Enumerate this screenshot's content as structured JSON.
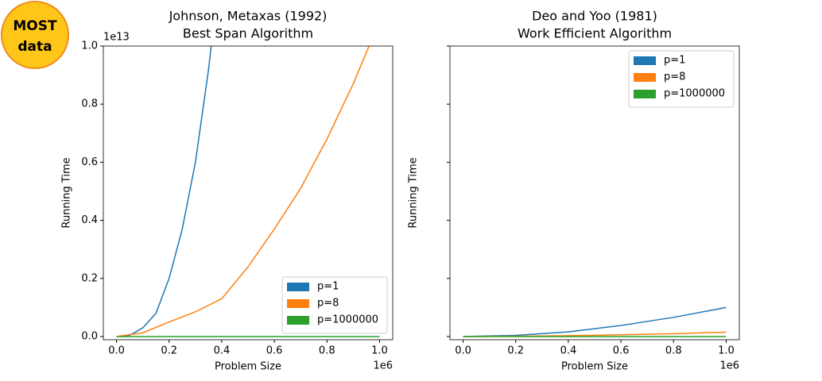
{
  "badge": {
    "line1": "MOST",
    "line2": "data"
  },
  "chart_data": [
    {
      "type": "line",
      "title": "Johnson, Metaxas (1992)",
      "subtitle": "Best Span Algorithm",
      "xlabel": "Problem Size",
      "ylabel": "Running Time",
      "x_offset": "1e6",
      "y_offset": "1e13",
      "xlim": [
        -0.05,
        1.05
      ],
      "ylim": [
        -0.011,
        1.0
      ],
      "xticks": [
        {
          "value": 0,
          "label": "0.0"
        },
        0.2,
        0.4,
        0.6,
        0.8,
        {
          "value": 1,
          "label": "1.0"
        }
      ],
      "yticks": [
        {
          "value": 0,
          "label": "0.0"
        },
        0.2,
        0.4,
        0.6,
        0.8,
        {
          "value": 1,
          "label": "1.0"
        }
      ],
      "ytick_labels": true,
      "legend": "lower right",
      "series": [
        {
          "name": "p=1",
          "color": "#1f77b4",
          "x": [
            0,
            0.05,
            0.1,
            0.15,
            0.2,
            0.25,
            0.3,
            0.35,
            0.36
          ],
          "values": [
            0,
            0.004,
            0.03,
            0.08,
            0.2,
            0.37,
            0.6,
            0.92,
            1.0
          ]
        },
        {
          "name": "p=8",
          "color": "#ff7f0e",
          "x": [
            0,
            0.1,
            0.2,
            0.3,
            0.4,
            0.5,
            0.6,
            0.7,
            0.8,
            0.9,
            0.96
          ],
          "values": [
            0,
            0.013,
            0.05,
            0.085,
            0.13,
            0.24,
            0.37,
            0.51,
            0.68,
            0.87,
            1.0
          ]
        },
        {
          "name": "p=1000000",
          "color": "#2ca02c",
          "x": [
            0,
            1
          ],
          "values": [
            0,
            0
          ]
        }
      ]
    },
    {
      "type": "line",
      "title": "Deo and Yoo (1981)",
      "subtitle": "Work Efficient Algorithm",
      "xlabel": "Problem Size",
      "ylabel": "Running Time",
      "x_offset": "1e6",
      "xlim": [
        -0.05,
        1.05
      ],
      "ylim": [
        -0.011,
        1.0
      ],
      "xticks": [
        {
          "value": 0,
          "label": "0.0"
        },
        0.2,
        0.4,
        0.6,
        0.8,
        {
          "value": 1,
          "label": "1.0"
        }
      ],
      "yticks": [
        0,
        0.2,
        0.4,
        0.6,
        0.8,
        1
      ],
      "ytick_labels": false,
      "legend": "upper right",
      "series": [
        {
          "name": "p=1",
          "color": "#1f77b4",
          "x": [
            0,
            0.2,
            0.4,
            0.6,
            0.8,
            1.0
          ],
          "values": [
            0,
            0.004,
            0.016,
            0.038,
            0.066,
            0.1
          ]
        },
        {
          "name": "p=8",
          "color": "#ff7f0e",
          "x": [
            0,
            0.2,
            0.4,
            0.6,
            0.8,
            1.0
          ],
          "values": [
            0,
            0.001,
            0.003,
            0.006,
            0.01,
            0.015
          ]
        },
        {
          "name": "p=1000000",
          "color": "#2ca02c",
          "x": [
            0,
            1
          ],
          "values": [
            0,
            0
          ]
        }
      ]
    }
  ]
}
